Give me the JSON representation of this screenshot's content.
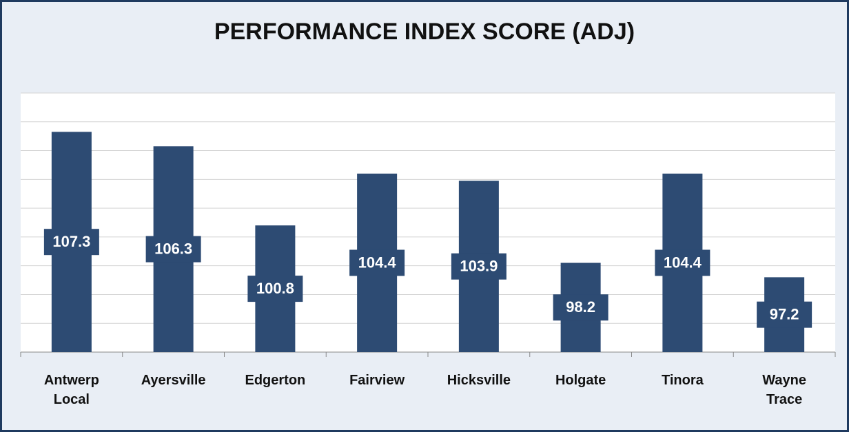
{
  "chart_data": {
    "type": "bar",
    "title": "PERFORMANCE INDEX SCORE (ADJ)",
    "categories": [
      "Antwerp Local",
      "Ayersville",
      "Edgerton",
      "Fairview",
      "Hicksville",
      "Holgate",
      "Tinora",
      "Wayne Trace"
    ],
    "values": [
      107.3,
      106.3,
      100.8,
      104.4,
      103.9,
      98.2,
      104.4,
      97.2
    ],
    "color": "#2d4b73",
    "ylim": [
      92,
      110
    ],
    "yticks": [
      92,
      94,
      96,
      98,
      100,
      102,
      104,
      106,
      108,
      110
    ],
    "grid": true,
    "show_tick_labels": false
  }
}
